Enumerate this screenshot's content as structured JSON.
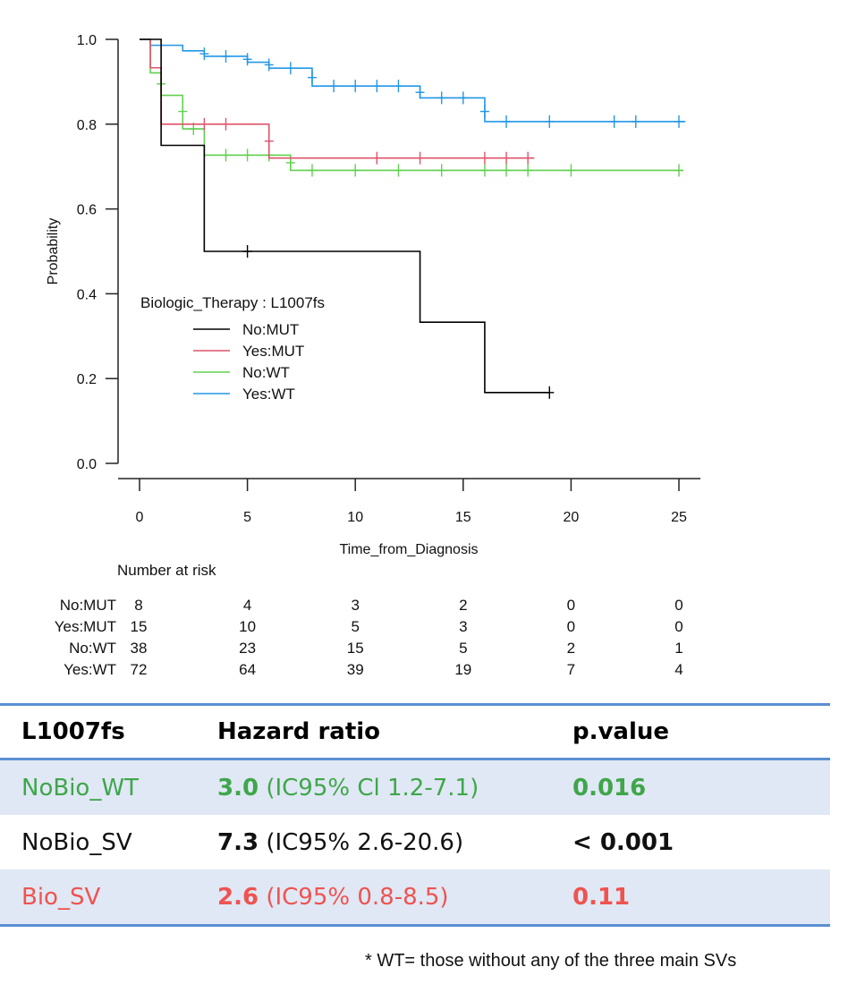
{
  "chart_data": {
    "type": "line",
    "subtype": "kaplan-meier",
    "xlabel": "Time_from_Diagnosis",
    "ylabel": "Probability",
    "xlim": [
      0,
      25
    ],
    "ylim": [
      0,
      1
    ],
    "x_ticks": [
      0,
      5,
      10,
      15,
      20,
      25
    ],
    "x_tick_labels": [
      "0",
      "5",
      "10",
      "15",
      "20",
      "25"
    ],
    "y_ticks": [
      0,
      0.2,
      0.4,
      0.6,
      0.8,
      1.0
    ],
    "y_tick_labels": [
      "0.0",
      "0.2",
      "0.4",
      "0.6",
      "0.8",
      "1.0"
    ],
    "grid": false,
    "legend": {
      "title": "Biologic_Therapy : L1007fs",
      "placement": "center-left",
      "entries": [
        "No:MUT",
        "Yes:MUT",
        "No:WT",
        "Yes:WT"
      ]
    },
    "series": [
      {
        "name": "No:MUT",
        "color": "#000000",
        "steps": [
          [
            0.5,
            1.0
          ],
          [
            1,
            0.75
          ],
          [
            3,
            0.5
          ],
          [
            13,
            0.333
          ],
          [
            16,
            0.167
          ]
        ],
        "end": 19,
        "censor": [
          [
            5,
            0.5
          ],
          [
            19,
            0.167
          ]
        ]
      },
      {
        "name": "Yes:MUT",
        "color": "#df536b",
        "steps": [
          [
            0.5,
            0.933
          ],
          [
            1,
            0.8
          ],
          [
            6,
            0.72
          ]
        ],
        "end": 18.3,
        "censor": [
          [
            3,
            0.8
          ],
          [
            4,
            0.8
          ],
          [
            6,
            0.76
          ],
          [
            11,
            0.72
          ],
          [
            13,
            0.72
          ],
          [
            16,
            0.72
          ],
          [
            17,
            0.72
          ],
          [
            18,
            0.72
          ]
        ]
      },
      {
        "name": "No:WT",
        "color": "#61d04f",
        "steps": [
          [
            0.5,
            0.921
          ],
          [
            1,
            0.868
          ],
          [
            2,
            0.789
          ],
          [
            3,
            0.727
          ],
          [
            7,
            0.691
          ]
        ],
        "end": 25.2,
        "censor": [
          [
            1,
            0.895
          ],
          [
            2,
            0.83
          ],
          [
            2.5,
            0.789
          ],
          [
            4,
            0.727
          ],
          [
            5,
            0.727
          ],
          [
            6,
            0.727
          ],
          [
            7,
            0.709
          ],
          [
            8,
            0.691
          ],
          [
            10,
            0.691
          ],
          [
            12,
            0.691
          ],
          [
            14,
            0.691
          ],
          [
            16,
            0.691
          ],
          [
            17,
            0.691
          ],
          [
            18,
            0.691
          ],
          [
            20,
            0.691
          ],
          [
            25,
            0.691
          ]
        ]
      },
      {
        "name": "Yes:WT",
        "color": "#2297e6",
        "steps": [
          [
            0.5,
            0.986
          ],
          [
            2,
            0.973
          ],
          [
            3,
            0.96
          ],
          [
            5,
            0.946
          ],
          [
            6,
            0.932
          ],
          [
            8,
            0.89
          ],
          [
            13,
            0.862
          ],
          [
            16,
            0.806
          ]
        ],
        "end": 25.3,
        "censor": [
          [
            3,
            0.966
          ],
          [
            4,
            0.96
          ],
          [
            5,
            0.953
          ],
          [
            6,
            0.94
          ],
          [
            7,
            0.932
          ],
          [
            8,
            0.91
          ],
          [
            9,
            0.89
          ],
          [
            10,
            0.89
          ],
          [
            11,
            0.89
          ],
          [
            12,
            0.89
          ],
          [
            13,
            0.875
          ],
          [
            14,
            0.862
          ],
          [
            15,
            0.862
          ],
          [
            16,
            0.83
          ],
          [
            17,
            0.806
          ],
          [
            19,
            0.806
          ],
          [
            22,
            0.806
          ],
          [
            23,
            0.806
          ],
          [
            25,
            0.806
          ]
        ]
      }
    ],
    "risk_table": {
      "title": "Number at risk",
      "times": [
        0,
        5,
        10,
        15,
        20,
        25
      ],
      "rows": [
        {
          "label": "No:MUT",
          "values": [
            8,
            4,
            3,
            2,
            0,
            0
          ]
        },
        {
          "label": "Yes:MUT",
          "values": [
            15,
            10,
            5,
            3,
            0,
            0
          ]
        },
        {
          "label": "No:WT",
          "values": [
            38,
            23,
            15,
            5,
            2,
            1
          ]
        },
        {
          "label": "Yes:WT",
          "values": [
            72,
            64,
            39,
            19,
            7,
            4
          ]
        }
      ]
    }
  },
  "hr_table": {
    "headers": [
      "L1007fs",
      "Hazard ratio",
      "p.value"
    ],
    "rows": [
      {
        "group": "NoBio_WT",
        "hr": "3.0",
        "ci": " (IC95% Cl 1.2-7.1)",
        "p": "0.016",
        "color": "#3fa64a",
        "p_bold": true
      },
      {
        "group": "NoBio_SV",
        "hr": "7.3",
        "ci": " (IC95% 2.6-20.6)",
        "p": "< 0.001",
        "color": "#111111",
        "p_bold": true
      },
      {
        "group": "Bio_SV",
        "hr": "2.6",
        "ci": " (IC95% 0.8-8.5)",
        "p": "0.11",
        "color": "#ef5350",
        "p_bold": true
      }
    ]
  },
  "footnote": "* WT= those without any of the three main SVs"
}
